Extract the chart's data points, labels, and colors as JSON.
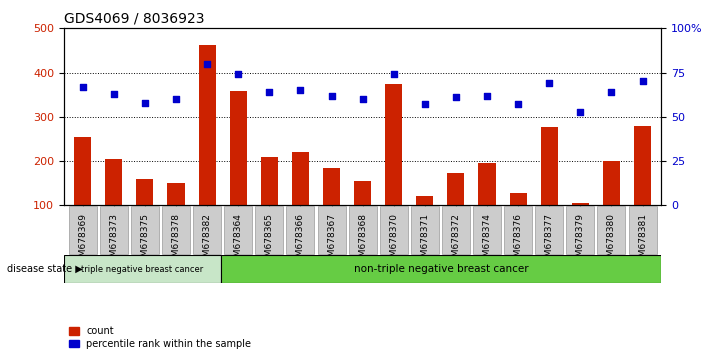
{
  "title": "GDS4069 / 8036923",
  "categories": [
    "GSM678369",
    "GSM678373",
    "GSM678375",
    "GSM678378",
    "GSM678382",
    "GSM678364",
    "GSM678365",
    "GSM678366",
    "GSM678367",
    "GSM678368",
    "GSM678370",
    "GSM678371",
    "GSM678372",
    "GSM678374",
    "GSM678376",
    "GSM678377",
    "GSM678379",
    "GSM678380",
    "GSM678381"
  ],
  "bar_values": [
    255,
    205,
    160,
    150,
    463,
    358,
    210,
    220,
    185,
    155,
    375,
    120,
    172,
    195,
    127,
    277,
    105,
    200,
    280
  ],
  "percentile_values": [
    67,
    63,
    58,
    60,
    80,
    74,
    64,
    65,
    62,
    60,
    74,
    57,
    61,
    62,
    57,
    69,
    53,
    64,
    70
  ],
  "bar_color": "#cc2200",
  "dot_color": "#0000cc",
  "ylim_left": [
    100,
    500
  ],
  "ylim_right": [
    0,
    100
  ],
  "yticks_left": [
    100,
    200,
    300,
    400,
    500
  ],
  "yticks_right": [
    0,
    25,
    50,
    75,
    100
  ],
  "ytick_labels_right": [
    "0",
    "25",
    "50",
    "75",
    "100%"
  ],
  "grid_lines": [
    200,
    300,
    400
  ],
  "group1_label": "triple negative breast cancer",
  "group2_label": "non-triple negative breast cancer",
  "group1_count": 5,
  "group2_count": 14,
  "disease_state_label": "disease state",
  "group1_color": "#c8e6c8",
  "group2_color": "#66cc44",
  "legend_count_label": "count",
  "legend_percentile_label": "percentile rank within the sample",
  "background_color": "#ffffff",
  "tick_bg_color": "#cccccc",
  "title_fontsize": 10,
  "axis_fontsize": 8,
  "tick_label_fontsize": 6.5
}
